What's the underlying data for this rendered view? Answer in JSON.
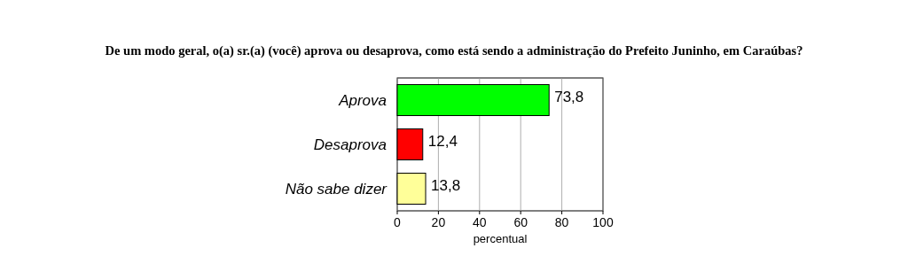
{
  "chart_data": {
    "type": "bar",
    "orientation": "horizontal",
    "title": "De um modo geral, o(a) sr.(a) (você) aprova ou desaprova, como está sendo a administração do Prefeito Juninho, em Caraúbas?",
    "xlabel": "percentual",
    "categories": [
      "Aprova",
      "Desaprova",
      "Não sabe dizer"
    ],
    "values": [
      73.8,
      12.4,
      13.8
    ],
    "colors": [
      "#00ff00",
      "#ff0000",
      "#ffff99"
    ],
    "value_labels": [
      "73,8",
      "12,4",
      "13,8"
    ],
    "xlim": [
      0,
      100
    ],
    "xticks": [
      0,
      20,
      40,
      60,
      80,
      100
    ],
    "grid": "x"
  }
}
